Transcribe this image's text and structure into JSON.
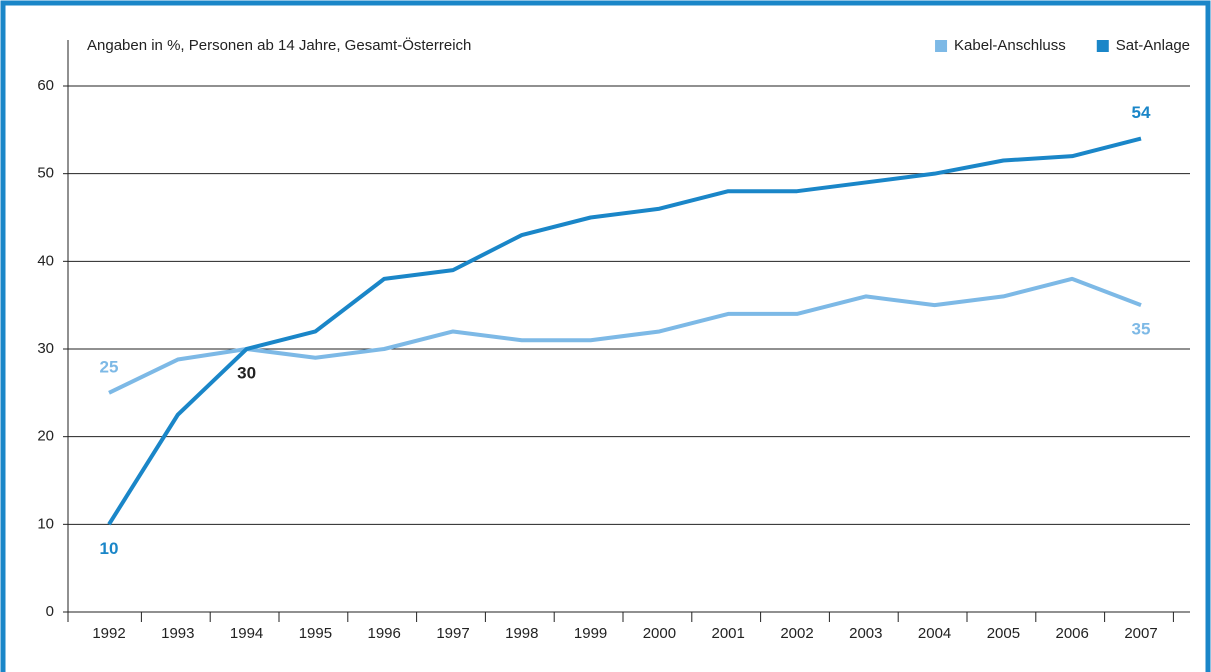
{
  "chart_data": {
    "type": "line",
    "title": "Angaben in %, Personen ab 14 Jahre, Gesamt-Österreich",
    "categories": [
      "1992",
      "1993",
      "1994",
      "1995",
      "1996",
      "1997",
      "1998",
      "1999",
      "2000",
      "2001",
      "2002",
      "2003",
      "2004",
      "2005",
      "2006",
      "2007"
    ],
    "series": [
      {
        "name": "Kabel-Anschluss",
        "color": "#7db9e6",
        "values": [
          25,
          28.8,
          30,
          29,
          30,
          32,
          31,
          31,
          32,
          34,
          34,
          36,
          35,
          36,
          38,
          35
        ],
        "labels": [
          {
            "index": 0
          },
          {
            "index": 15
          }
        ]
      },
      {
        "name": "Sat-Anlage",
        "color": "#1a86c8",
        "values": [
          10,
          22.5,
          30,
          32,
          38,
          39,
          43,
          45,
          46,
          48,
          48,
          49,
          50,
          51.5,
          52,
          54
        ],
        "labels": [
          {
            "index": 0
          },
          {
            "index": 2,
            "color": "#222222"
          },
          {
            "index": 15
          }
        ]
      }
    ],
    "ylim": [
      0,
      60
    ],
    "yticks": [
      0,
      10,
      20,
      30,
      40,
      50,
      60
    ],
    "grid": true,
    "legend": "top-right"
  }
}
